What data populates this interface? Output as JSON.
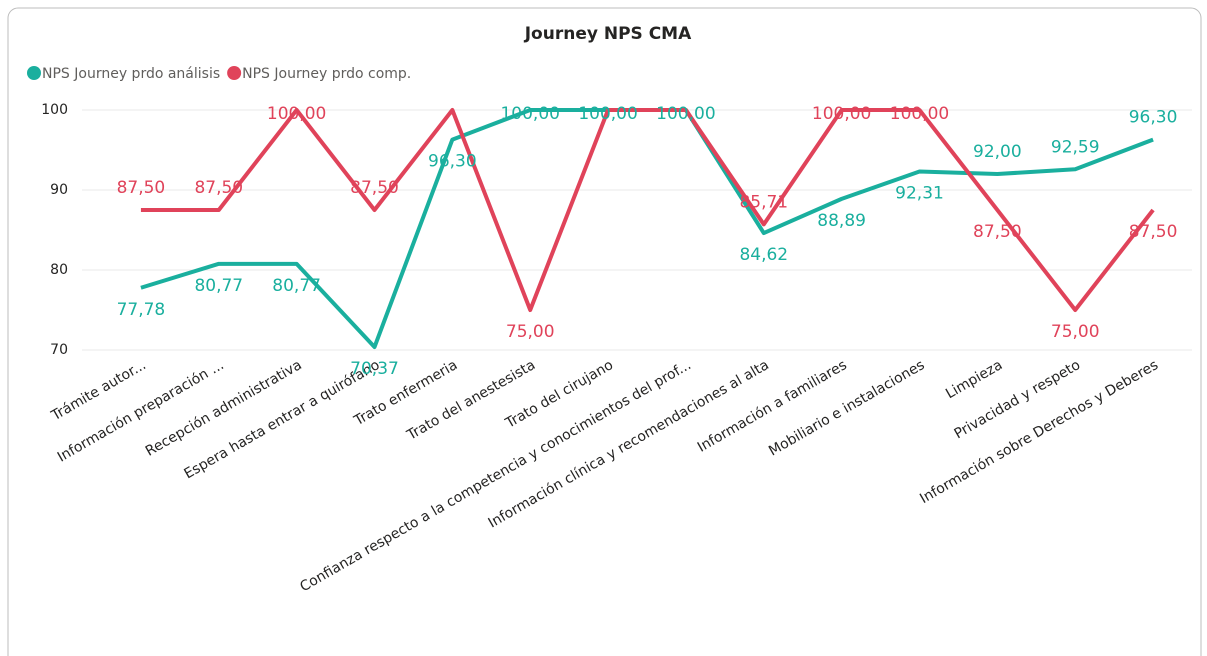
{
  "chart_data": {
    "type": "line",
    "title": "Journey NPS CMA",
    "categories": [
      "Trámite autor...",
      "Información preparación ...",
      "Recepción administrativa",
      "Espera hasta entrar a quirófano",
      "Trato enfermeria",
      "Trato del anestesista",
      "Trato del cirujano",
      "Confianza respecto a la competencia y conocimientos del prof...",
      "Información clínica y recomendaciones al alta",
      "Información a familiares",
      "Mobiliario e instalaciones",
      "Limpieza",
      "Privacidad y respeto",
      "Información sobre Derechos y Deberes"
    ],
    "series": [
      {
        "name": "NPS Journey prdo análisis",
        "color": "#1aaf9e",
        "values": [
          77.78,
          80.77,
          80.77,
          70.37,
          96.3,
          100,
          100,
          100,
          84.62,
          88.89,
          92.31,
          92.0,
          92.59,
          96.3
        ],
        "value_labels": [
          "77,78",
          "80,77",
          "80,77",
          "70,37",
          "96,30",
          "100,00",
          "100,00",
          "100,00",
          "84,62",
          "88,89",
          "92,31",
          "92,00",
          "92,59",
          "96,30"
        ]
      },
      {
        "name": "NPS Journey prdo comp.",
        "color": "#e0435a",
        "values": [
          87.5,
          87.5,
          100,
          87.5,
          100,
          75,
          100,
          100,
          85.71,
          100,
          100,
          87.5,
          75,
          87.5
        ],
        "value_labels": [
          "87,50",
          "87,50",
          "100,00",
          "87,50",
          null,
          "75,00",
          null,
          null,
          "85,71",
          "100,00",
          "100,00",
          "87,50",
          "75,00",
          "87,50"
        ]
      }
    ],
    "ylim": [
      70,
      100
    ],
    "yticks": [
      70,
      80,
      90,
      100
    ],
    "grid": true,
    "legend": "top-left"
  }
}
